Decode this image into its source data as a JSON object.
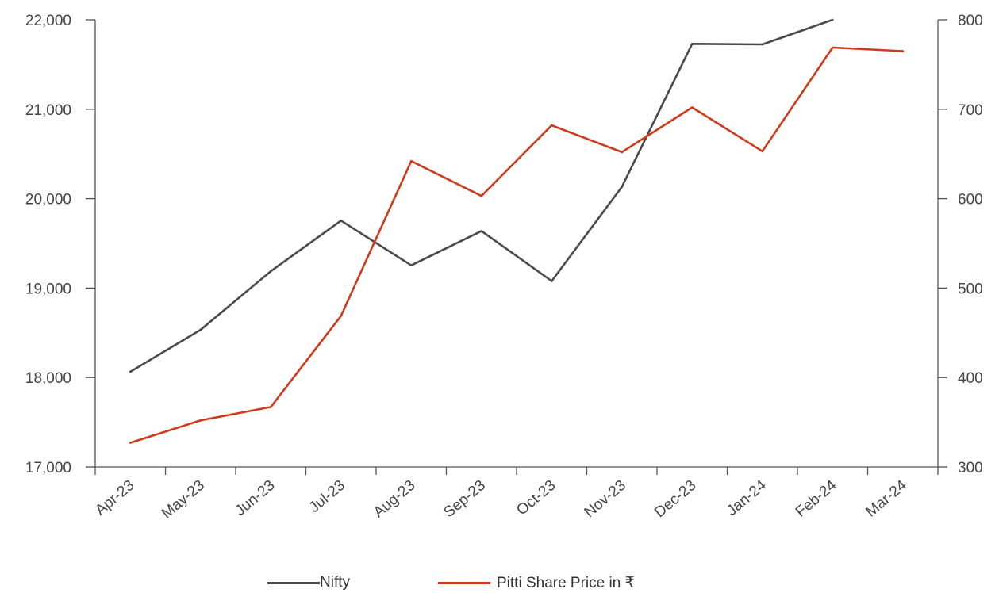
{
  "chart_data": {
    "type": "line",
    "categories": [
      "Apr-23",
      "May-23",
      "Jun-23",
      "Jul-23",
      "Aug-23",
      "Sep-23",
      "Oct-23",
      "Nov-23",
      "Dec-23",
      "Jan-24",
      "Feb-24",
      "Mar-24"
    ],
    "series": [
      {
        "name": "Nifty",
        "axis": "left",
        "color": "#4a4a4a",
        "values": [
          18065,
          18534,
          19189,
          19754,
          19254,
          19638,
          19079,
          20133,
          21731,
          21725,
          22000,
          null
        ]
      },
      {
        "name": "Pitti Share Price in ₹",
        "axis": "right",
        "color": "#d03a1b",
        "values": [
          327,
          352,
          367,
          469,
          642,
          603,
          682,
          652,
          702,
          653,
          769,
          765
        ]
      }
    ],
    "y_left": {
      "ylim": [
        17000,
        22000
      ],
      "ticks": [
        "17,000",
        "18,000",
        "19,000",
        "20,000",
        "21,000",
        "22,000"
      ]
    },
    "y_right": {
      "ylim": [
        300,
        800
      ],
      "ticks": [
        "300",
        "400",
        "500",
        "600",
        "700",
        "800"
      ]
    },
    "grid": false,
    "legend_position": "bottom"
  }
}
